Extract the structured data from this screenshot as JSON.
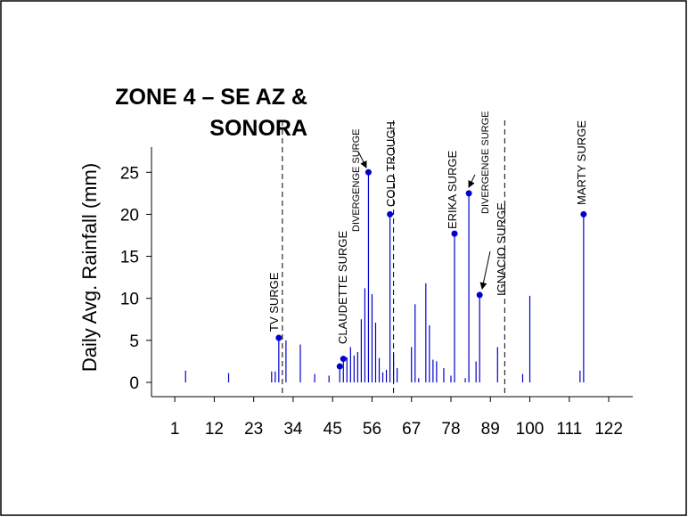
{
  "chart_data": {
    "type": "stem",
    "title": [
      "ZONE 4 – SE AZ &",
      "SONORA"
    ],
    "y_label": "Daily Avg. Rainfall (mm)",
    "color": "#0000cc",
    "x": [
      4,
      16,
      28,
      29,
      30,
      32,
      36,
      40,
      44,
      47,
      48,
      49,
      50,
      51,
      52,
      53,
      54,
      55,
      56,
      57,
      58,
      59,
      60,
      61,
      62,
      63,
      67,
      68,
      69,
      71,
      72,
      73,
      74,
      76,
      78,
      79,
      82,
      83,
      85,
      86,
      91,
      98,
      100,
      114,
      115
    ],
    "values": [
      1.4,
      1.1,
      1.3,
      1.3,
      5.3,
      5.0,
      4.5,
      1.0,
      0.8,
      1.9,
      2.8,
      3.0,
      4.2,
      3.2,
      3.6,
      7.5,
      11.2,
      25,
      10.5,
      7.1,
      2.9,
      1.2,
      1.5,
      20,
      3.4,
      1.7,
      4.2,
      9.3,
      0.5,
      11.8,
      6.8,
      2.7,
      2.5,
      1.7,
      0.8,
      17.7,
      0.5,
      22.5,
      2.5,
      10.4,
      4.2,
      1.0,
      10.3,
      1.4,
      20
    ],
    "marker_x": [
      30,
      47,
      48,
      55,
      61,
      79,
      83,
      86,
      115
    ],
    "dashed_x": [
      31,
      62,
      93
    ],
    "annotations": [
      "TV SURGE",
      "CLAUDETTE SURGE",
      "DIVERGENGE SURGE",
      "COLD TROUGH",
      "ERIKA SURGE",
      "DIVERGENGE SURGE",
      "IGNACIO SURGE",
      "MARTY SURGE"
    ],
    "xlim": [
      -5.5,
      128.7
    ],
    "ylim": [
      -1.7,
      28
    ],
    "xticks": [
      1,
      12,
      23,
      34,
      45,
      56,
      67,
      78,
      89,
      100,
      111,
      122
    ],
    "yticks": [
      0,
      5,
      10,
      15,
      20,
      25
    ]
  }
}
